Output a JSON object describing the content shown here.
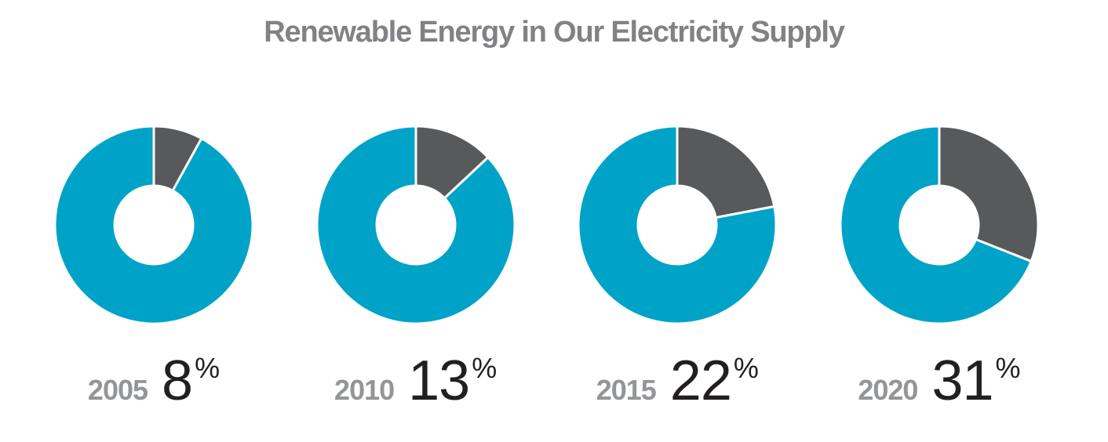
{
  "page": {
    "background": "#ffffff"
  },
  "title": {
    "text": "Renewable Energy in Our Electricity Supply",
    "color": "#808285"
  },
  "chart_data": {
    "type": "pie",
    "variant": "donut-small-multiples",
    "title": "Renewable Energy in Our Electricity Supply",
    "categories": [
      "2005",
      "2010",
      "2015",
      "2020"
    ],
    "values": [
      8,
      13,
      22,
      31
    ],
    "value_suffix": "%",
    "start_angle_deg": 0,
    "direction": "clockwise",
    "slice_colors": {
      "value": "#58595b",
      "remainder": "#00a3c8"
    },
    "divider_color": "#ffffff",
    "label_colors": {
      "year": "#939598",
      "value": "#231f20"
    },
    "legend": "none"
  }
}
